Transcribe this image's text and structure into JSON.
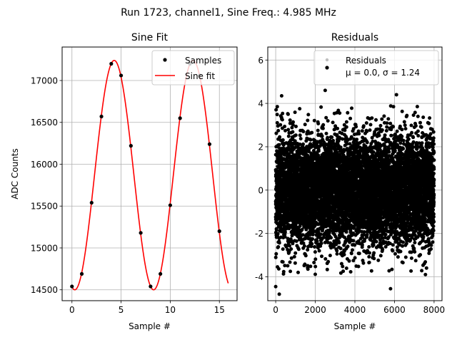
{
  "figure": {
    "suptitle": "Run 1723, channel1, Sine Freq.: 4.985 MHz"
  },
  "chart_data": [
    {
      "type": "scatter",
      "title": "Sine Fit",
      "xlabel": "Sample #",
      "ylabel": "ADC Counts",
      "xlim": [
        -1.0,
        16.8
      ],
      "ylim": [
        14370,
        17400
      ],
      "xticks": [
        0,
        5,
        10,
        15
      ],
      "yticks": [
        14500,
        15000,
        15500,
        16000,
        16500,
        17000
      ],
      "grid": true,
      "legend_position": "top-right",
      "series": [
        {
          "name": "Samples",
          "kind": "points",
          "color": "#000000",
          "x": [
            0,
            1,
            2,
            3,
            4,
            5,
            6,
            7,
            8,
            9,
            10,
            11,
            12,
            13,
            14,
            15
          ],
          "y": [
            14540,
            14690,
            15540,
            16570,
            17200,
            17060,
            16220,
            15180,
            14540,
            14690,
            15510,
            16550,
            17200,
            17060,
            16240,
            15200
          ]
        },
        {
          "name": "Sine fit",
          "kind": "line",
          "color": "#ff0000",
          "model": {
            "offset": 15870,
            "amplitude": 1370,
            "period_samples": 8.0214,
            "peak_at_sample": 4.3,
            "x_range": [
              0,
              15.9
            ]
          }
        }
      ]
    },
    {
      "type": "scatter",
      "title": "Residuals",
      "xlabel": "Sample #",
      "ylabel": "",
      "xlim": [
        -400,
        8400
      ],
      "ylim": [
        -5.1,
        6.6
      ],
      "xticks": [
        0,
        2000,
        4000,
        6000,
        8000
      ],
      "yticks": [
        -4,
        -2,
        0,
        2,
        4,
        6
      ],
      "grid": true,
      "legend_position": "top-right",
      "series": [
        {
          "name": "Residuals",
          "kind": "points",
          "color": "#000000",
          "n_points": 8000,
          "x_range": [
            0,
            7999
          ],
          "mean": 0.0,
          "sigma": 1.24,
          "note_points": [
            [
              0,
              -4.45
            ],
            [
              180,
              -4.8
            ],
            [
              300,
              4.35
            ],
            [
              2500,
              4.6
            ],
            [
              5800,
              -4.55
            ],
            [
              6100,
              4.4
            ]
          ]
        }
      ],
      "legend_entries": [
        "Residuals",
        "μ = 0.0, σ = 1.24"
      ]
    }
  ]
}
